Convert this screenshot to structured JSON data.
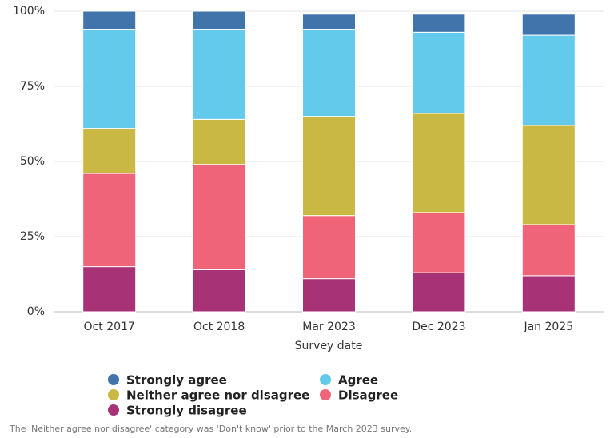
{
  "chart_data": {
    "type": "stacked_bar",
    "categories": [
      "Oct 2017",
      "Oct 2018",
      "Mar 2023",
      "Dec 2023",
      "Jan 2025"
    ],
    "x_label": "Survey date",
    "series": [
      {
        "name": "Strongly agree",
        "color": "#4174aa",
        "values": [
          6,
          6,
          5,
          6,
          7
        ]
      },
      {
        "name": "Agree",
        "color": "#64caec",
        "values": [
          33,
          30,
          29,
          27,
          30
        ]
      },
      {
        "name": "Neither agree nor disagree",
        "color": "#c9b843",
        "values": [
          15,
          15,
          33,
          33,
          33
        ]
      },
      {
        "name": "Disagree",
        "color": "#ef6479",
        "values": [
          31,
          35,
          21,
          20,
          17
        ]
      },
      {
        "name": "Strongly disagree",
        "color": "#a73276",
        "values": [
          15,
          14,
          11,
          13,
          12
        ]
      }
    ],
    "ylim": [
      0,
      100
    ],
    "yticks": [
      {
        "value": 0,
        "label": "0%"
      },
      {
        "value": 25,
        "label": "25%"
      },
      {
        "value": 50,
        "label": "50%"
      },
      {
        "value": 75,
        "label": "75%"
      },
      {
        "value": 100,
        "label": "100%"
      }
    ],
    "grid": true,
    "note": "The 'Neither agree nor disagree' category was 'Don't know' prior to the March 2023 survey."
  }
}
